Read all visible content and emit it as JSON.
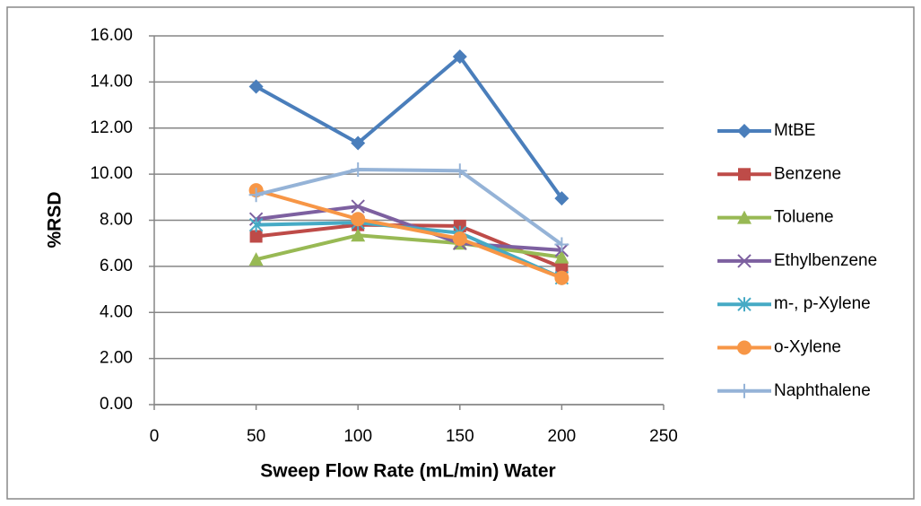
{
  "chart_data": {
    "type": "line",
    "x_label": "Sweep Flow Rate (mL/min) Water",
    "y_label": "%RSD",
    "x": [
      50,
      100,
      150,
      200
    ],
    "xlim": [
      0,
      250
    ],
    "xticks": [
      0,
      50,
      100,
      150,
      200,
      250
    ],
    "ylim": [
      0,
      16
    ],
    "yticks": [
      {
        "value": 0,
        "label": "0.00"
      },
      {
        "value": 2,
        "label": "2.00"
      },
      {
        "value": 4,
        "label": "4.00"
      },
      {
        "value": 6,
        "label": "6.00"
      },
      {
        "value": 8,
        "label": "8.00"
      },
      {
        "value": 10,
        "label": "10.00"
      },
      {
        "value": 12,
        "label": "12.00"
      },
      {
        "value": 14,
        "label": "14.00"
      },
      {
        "value": 16,
        "label": "16.00"
      }
    ],
    "grid": true,
    "legend": "right",
    "series": [
      {
        "name": "MtBE",
        "color": "#4a7ebb",
        "marker": "diamond",
        "values": [
          13.8,
          11.35,
          15.1,
          8.95
        ]
      },
      {
        "name": "Benzene",
        "color": "#be4b48",
        "marker": "square",
        "values": [
          7.3,
          7.8,
          7.75,
          5.95
        ]
      },
      {
        "name": "Toluene",
        "color": "#98b954",
        "marker": "triangle",
        "values": [
          6.3,
          7.35,
          7.0,
          6.4
        ]
      },
      {
        "name": "Ethylbenzene",
        "color": "#7d60a0",
        "marker": "x",
        "values": [
          8.05,
          8.6,
          7.0,
          6.7
        ]
      },
      {
        "name": "m-, p-Xylene",
        "color": "#46aac5",
        "marker": "asterisk",
        "values": [
          7.8,
          7.9,
          7.45,
          5.5
        ]
      },
      {
        "name": "o-Xylene",
        "color": "#f79646",
        "marker": "circle",
        "values": [
          9.3,
          8.05,
          7.2,
          5.5
        ]
      },
      {
        "name": "Naphthalene",
        "color": "#95b3d7",
        "marker": "plus",
        "values": [
          9.1,
          10.2,
          10.15,
          6.95
        ]
      }
    ]
  }
}
